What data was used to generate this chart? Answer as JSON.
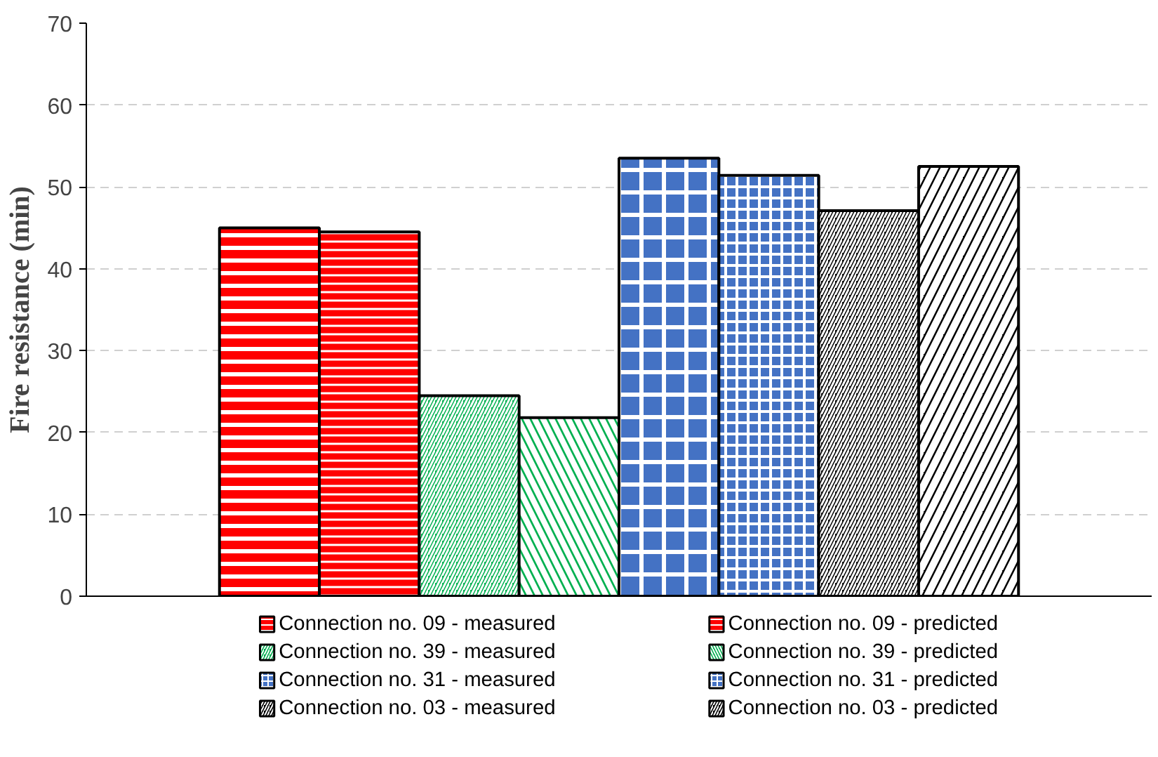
{
  "chart_data": {
    "type": "bar",
    "ylabel": "Fire resistance (min)",
    "categories": [
      null
    ],
    "series": [
      {
        "name": "Connection no. 09 - measured",
        "color": "#ff0000",
        "values": [
          45.0
        ]
      },
      {
        "name": "Connection no. 09 - predicted",
        "color": "#ff0000",
        "values": [
          44.5
        ]
      },
      {
        "name": "Connection no. 39 - measured",
        "color": "#00b050",
        "values": [
          24.5
        ]
      },
      {
        "name": "Connection no. 39 - predicted",
        "color": "#00b050",
        "values": [
          21.8
        ]
      },
      {
        "name": "Connection no. 31 - measured",
        "color": "#4472c4",
        "values": [
          53.5
        ]
      },
      {
        "name": "Connection no. 31 - predicted",
        "color": "#4472c4",
        "values": [
          51.4
        ]
      },
      {
        "name": "Connection no. 03 - measured",
        "color": "#000000",
        "values": [
          47.1
        ]
      },
      {
        "name": "Connection no. 03 - predicted",
        "color": "#000000",
        "values": [
          52.5
        ]
      }
    ],
    "ylim": [
      0,
      70
    ],
    "yticks": [
      0,
      10,
      20,
      30,
      40,
      50,
      60,
      70
    ],
    "grid": "y",
    "legend": "bottom"
  }
}
